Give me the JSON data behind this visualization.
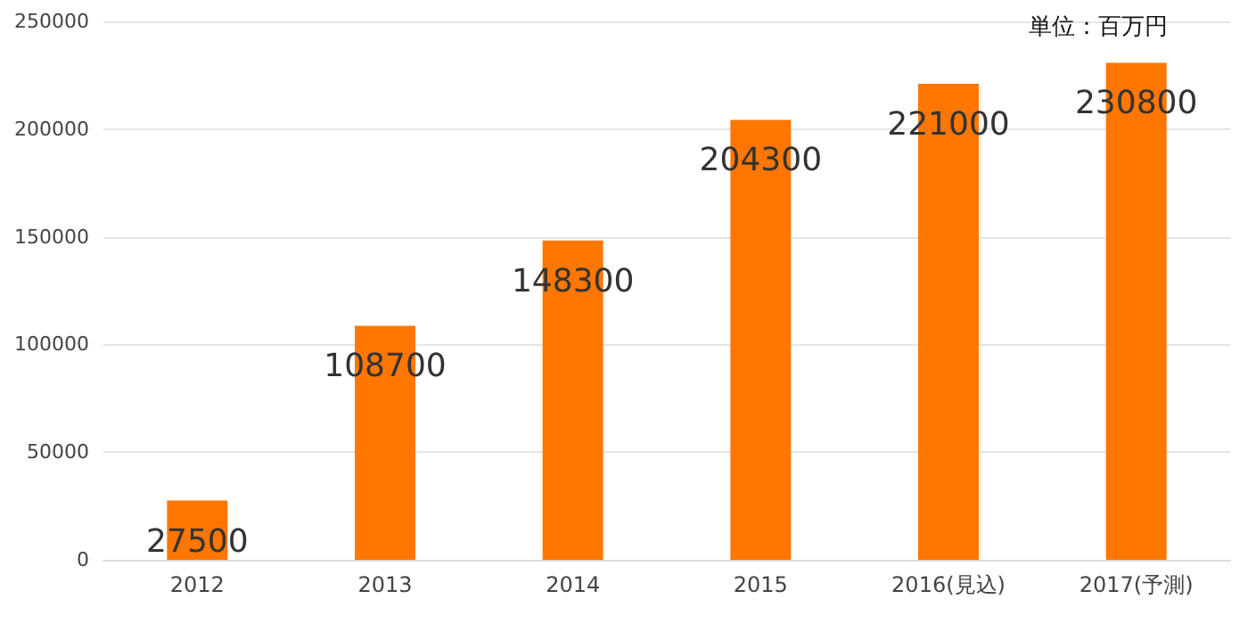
{
  "chart_data": {
    "type": "bar",
    "categories": [
      "2012",
      "2013",
      "2014",
      "2015",
      "2016(見込)",
      "2017(予測)"
    ],
    "values": [
      27500,
      108700,
      148300,
      204300,
      221000,
      230800
    ],
    "color": "#ff7700",
    "ylim": [
      0,
      250000
    ],
    "yticks": [
      0,
      50000,
      100000,
      150000,
      200000,
      250000
    ],
    "grid": "y",
    "data_labels": true,
    "annotations": [
      "単位：百万円"
    ]
  }
}
